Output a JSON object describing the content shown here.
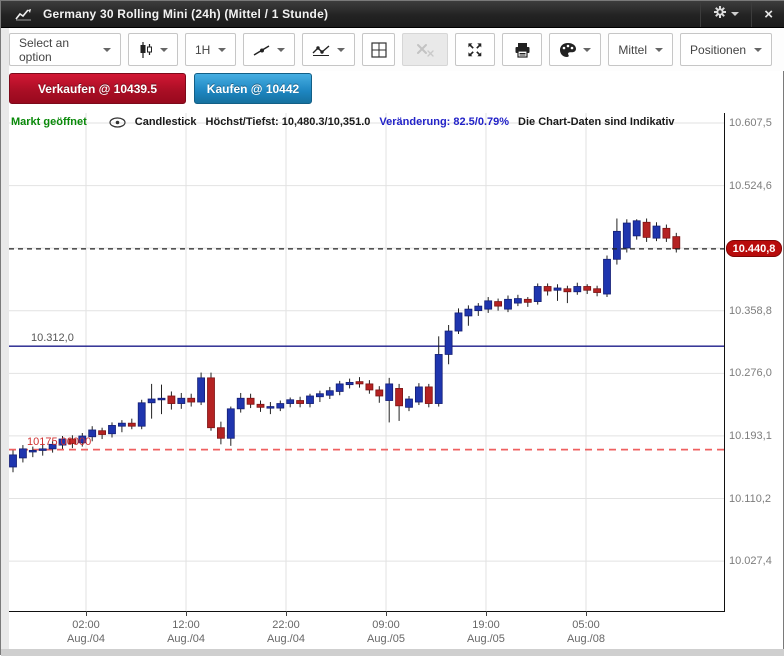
{
  "window": {
    "title": "Germany 30 Rolling Mini (24h) (Mittel / 1 Stunde)",
    "close_glyph": "×"
  },
  "toolbar": {
    "select_option_label": "Select an option",
    "interval_label": "1H",
    "mittel_label": "Mittel",
    "positionen_label": "Positionen"
  },
  "trade": {
    "sell_label": "Verkaufen @ 10439.5",
    "buy_label": "Kaufen @ 10442"
  },
  "chart_header": {
    "market_status": "Markt geöffnet",
    "series_type": "Candlestick",
    "high_low": "Höchst/Tiefst: 10,480.3/10,351.0",
    "change": "Veränderung: 82.5/0.79%",
    "indicative": "Die Chart-Daten sind Indikativ"
  },
  "chart_data": {
    "type": "candlestick",
    "title": "Germany 30 Rolling Mini (24h)",
    "interval": "1H",
    "grid": true,
    "colors": {
      "up": "#1f35ae",
      "up_border": "#141f74",
      "down": "#b42222",
      "down_border": "#7d1414",
      "wick": "#222222",
      "grid": "#e2e2e2",
      "mid_line": "#1b1b8a",
      "stop_line": "#ef6060",
      "current_line": "#222222",
      "badge": "#b80c0c"
    },
    "y_axis": {
      "vmax": 10620.7,
      "vmin": 9961.3,
      "ticks": [
        {
          "v": 10607.5,
          "label": "10.607,5"
        },
        {
          "v": 10524.6,
          "label": "10.524,6"
        },
        {
          "v": 10441.7,
          "label": ""
        },
        {
          "v": 10358.8,
          "label": "10.358,8"
        },
        {
          "v": 10276.0,
          "label": "10.276,0"
        },
        {
          "v": 10193.1,
          "label": "10.193,1"
        },
        {
          "v": 10110.2,
          "label": "10.110,2"
        },
        {
          "v": 10027.4,
          "label": "10.027,4"
        }
      ]
    },
    "x_axis": {
      "ticks": [
        {
          "pos": 0.1077,
          "time": "02:00",
          "date": "Aug./04"
        },
        {
          "pos": 0.2476,
          "time": "12:00",
          "date": "Aug./04"
        },
        {
          "pos": 0.3874,
          "time": "22:00",
          "date": "Aug./04"
        },
        {
          "pos": 0.5273,
          "time": "09:00",
          "date": "Aug./05"
        },
        {
          "pos": 0.6671,
          "time": "19:00",
          "date": "Aug./05"
        },
        {
          "pos": 0.807,
          "time": "05:00",
          "date": "Aug./08"
        }
      ]
    },
    "current_price": {
      "value": 10440.8,
      "label": "10.440,8"
    },
    "levels": [
      {
        "style": "solid",
        "value": 10312.0,
        "label": "10.312,0",
        "color": "#1b1b8a"
      },
      {
        "style": "dashed",
        "value": 10175.0,
        "label": "10175.00000",
        "color": "#ef6060"
      }
    ],
    "candles": [
      [
        10152,
        10174,
        10145,
        10168
      ],
      [
        10164,
        10181,
        10158,
        10176
      ],
      [
        10172,
        10179,
        10165,
        10174
      ],
      [
        10174,
        10183,
        10167,
        10176
      ],
      [
        10176,
        10186,
        10171,
        10182
      ],
      [
        10181,
        10193,
        10176,
        10189
      ],
      [
        10189,
        10194,
        10177,
        10183
      ],
      [
        10184,
        10197,
        10179,
        10193
      ],
      [
        10192,
        10206,
        10186,
        10201
      ],
      [
        10200,
        10204,
        10189,
        10195
      ],
      [
        10196,
        10211,
        10191,
        10207
      ],
      [
        10206,
        10214,
        10198,
        10210
      ],
      [
        10210,
        10216,
        10202,
        10206
      ],
      [
        10206,
        10241,
        10202,
        10237
      ],
      [
        10237,
        10262,
        10216,
        10242
      ],
      [
        10241,
        10261,
        10222,
        10243
      ],
      [
        10246,
        10252,
        10228,
        10236
      ],
      [
        10236,
        10250,
        10229,
        10243
      ],
      [
        10243,
        10249,
        10232,
        10238
      ],
      [
        10238,
        10277,
        10234,
        10270
      ],
      [
        10270,
        10277,
        10200,
        10204
      ],
      [
        10204,
        10212,
        10182,
        10190
      ],
      [
        10190,
        10232,
        10180,
        10229
      ],
      [
        10229,
        10250,
        10224,
        10243
      ],
      [
        10243,
        10249,
        10230,
        10235
      ],
      [
        10235,
        10240,
        10225,
        10231
      ],
      [
        10230,
        10238,
        10222,
        10232
      ],
      [
        10230,
        10240,
        10226,
        10236
      ],
      [
        10236,
        10244,
        10231,
        10241
      ],
      [
        10240,
        10245,
        10231,
        10236
      ],
      [
        10236,
        10249,
        10231,
        10246
      ],
      [
        10245,
        10253,
        10238,
        10249
      ],
      [
        10247,
        10258,
        10242,
        10253
      ],
      [
        10252,
        10266,
        10247,
        10262
      ],
      [
        10261,
        10269,
        10256,
        10264
      ],
      [
        10265,
        10271,
        10257,
        10262
      ],
      [
        10262,
        10267,
        10249,
        10254
      ],
      [
        10254,
        10259,
        10237,
        10246
      ],
      [
        10240,
        10270,
        10211,
        10262
      ],
      [
        10256,
        10262,
        10213,
        10233
      ],
      [
        10231,
        10246,
        10226,
        10242
      ],
      [
        10238,
        10263,
        10234,
        10258
      ],
      [
        10258,
        10262,
        10231,
        10236
      ],
      [
        10236,
        10325,
        10232,
        10301
      ],
      [
        10301,
        10340,
        10288,
        10332
      ],
      [
        10332,
        10362,
        10328,
        10356
      ],
      [
        10352,
        10366,
        10339,
        10361
      ],
      [
        10359,
        10369,
        10352,
        10365
      ],
      [
        10361,
        10377,
        10356,
        10372
      ],
      [
        10371,
        10375,
        10359,
        10365
      ],
      [
        10361,
        10379,
        10357,
        10374
      ],
      [
        10369,
        10380,
        10365,
        10375
      ],
      [
        10374,
        10377,
        10364,
        10370
      ],
      [
        10371,
        10395,
        10367,
        10391
      ],
      [
        10391,
        10395,
        10379,
        10385
      ],
      [
        10386,
        10394,
        10372,
        10389
      ],
      [
        10388,
        10392,
        10369,
        10384
      ],
      [
        10384,
        10396,
        10380,
        10391
      ],
      [
        10391,
        10394,
        10381,
        10386
      ],
      [
        10388,
        10392,
        10378,
        10383
      ],
      [
        10381,
        10432,
        10377,
        10427
      ],
      [
        10427,
        10481,
        10420,
        10464
      ],
      [
        10442,
        10480,
        10436,
        10475
      ],
      [
        10458,
        10480,
        10453,
        10478
      ],
      [
        10476,
        10481,
        10450,
        10456
      ],
      [
        10455,
        10476,
        10451,
        10471
      ],
      [
        10468,
        10473,
        10450,
        10455
      ],
      [
        10457,
        10462,
        10436,
        10441
      ]
    ]
  }
}
